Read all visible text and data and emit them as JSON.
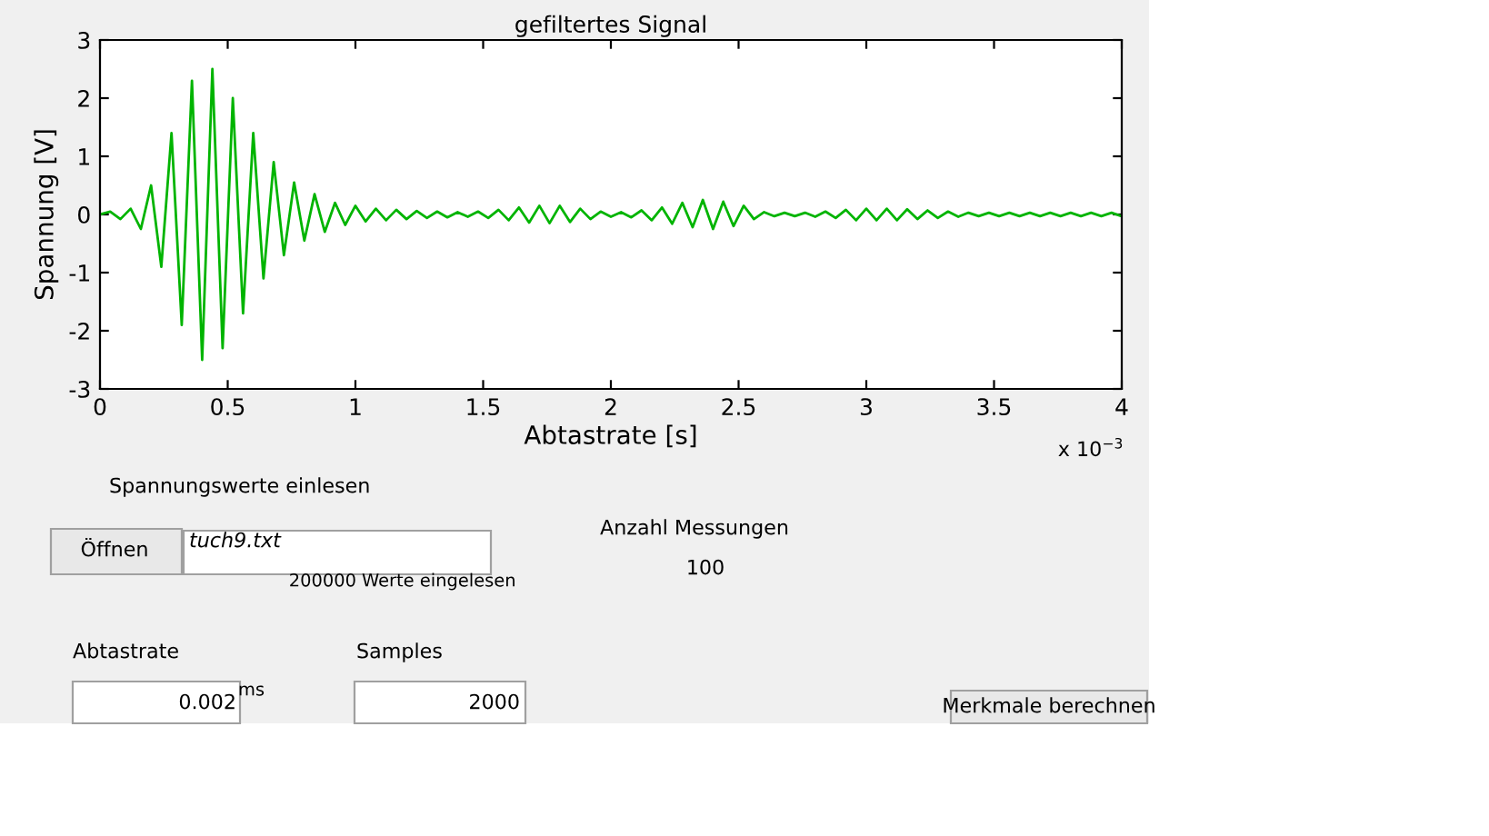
{
  "chart_data": {
    "type": "line",
    "title": "gefiltertes Signal",
    "xlabel": "Abtastrate [s]",
    "ylabel": "Spannung [V]",
    "xlim": [
      0,
      4
    ],
    "xticks": [
      0,
      0.5,
      1,
      1.5,
      2,
      2.5,
      3,
      3.5,
      4
    ],
    "ylim": [
      -3,
      3
    ],
    "yticks": [
      -3,
      -2,
      -1,
      0,
      1,
      2,
      3
    ],
    "grid": false,
    "legend": false,
    "marker": "none",
    "line_style": "solid",
    "annotations": [
      "x 10$^{−3}$",
      "Spannungswerte einlesen",
      "Öffnen",
      "tuch9.txt",
      "200000",
      "Werte eingelesen",
      "Anzahl Messungen",
      "100",
      "Abtastrate",
      "0.002",
      "ms",
      "Samples",
      "2000",
      "Merkmale berechnen"
    ],
    "series": [
      {
        "color": "#00b400",
        "x": [
          0,
          0.04,
          0.08,
          0.12,
          0.16,
          0.2,
          0.24,
          0.28,
          0.32,
          0.36,
          0.4,
          0.44,
          0.48,
          0.52,
          0.56,
          0.6,
          0.64,
          0.68,
          0.72,
          0.76,
          0.8,
          0.84,
          0.88,
          0.92,
          0.96,
          1.0,
          1.04,
          1.08,
          1.12,
          1.16,
          1.2,
          1.24,
          1.28,
          1.32,
          1.36,
          1.4,
          1.44,
          1.48,
          1.52,
          1.56,
          1.6,
          1.64,
          1.68,
          1.72,
          1.76,
          1.8,
          1.84,
          1.88,
          1.92,
          1.96,
          2.0,
          2.04,
          2.08,
          2.12,
          2.16,
          2.2,
          2.24,
          2.28,
          2.32,
          2.36,
          2.4,
          2.44,
          2.48,
          2.52,
          2.56,
          2.6,
          2.64,
          2.68,
          2.72,
          2.76,
          2.8,
          2.84,
          2.88,
          2.92,
          2.96,
          3.0,
          3.04,
          3.08,
          3.12,
          3.16,
          3.2,
          3.24,
          3.28,
          3.32,
          3.36,
          3.4,
          3.44,
          3.48,
          3.52,
          3.56,
          3.6,
          3.64,
          3.68,
          3.72,
          3.76,
          3.8,
          3.84,
          3.88,
          3.92,
          3.96,
          4.0
        ],
        "values": [
          0,
          0.05,
          -0.08,
          0.1,
          -0.25,
          0.5,
          -0.9,
          1.4,
          -1.9,
          2.3,
          -2.5,
          2.5,
          -2.3,
          2.0,
          -1.7,
          1.4,
          -1.1,
          0.9,
          -0.7,
          0.55,
          -0.45,
          0.35,
          -0.3,
          0.2,
          -0.18,
          0.15,
          -0.12,
          0.1,
          -0.1,
          0.08,
          -0.08,
          0.06,
          -0.06,
          0.05,
          -0.05,
          0.04,
          -0.04,
          0.05,
          -0.06,
          0.08,
          -0.1,
          0.12,
          -0.14,
          0.15,
          -0.15,
          0.15,
          -0.13,
          0.1,
          -0.08,
          0.05,
          -0.04,
          0.04,
          -0.05,
          0.07,
          -0.1,
          0.12,
          -0.16,
          0.2,
          -0.22,
          0.25,
          -0.25,
          0.22,
          -0.2,
          0.15,
          -0.08,
          0.04,
          -0.03,
          0.03,
          -0.03,
          0.03,
          -0.04,
          0.05,
          -0.06,
          0.08,
          -0.1,
          0.1,
          -0.1,
          0.1,
          -0.1,
          0.09,
          -0.08,
          0.07,
          -0.06,
          0.05,
          -0.04,
          0.03,
          -0.03,
          0.03,
          -0.03,
          0.03,
          -0.03,
          0.03,
          -0.03,
          0.03,
          -0.03,
          0.03,
          -0.03,
          0.03,
          -0.03,
          0.03,
          -0.03
        ]
      }
    ]
  }
}
